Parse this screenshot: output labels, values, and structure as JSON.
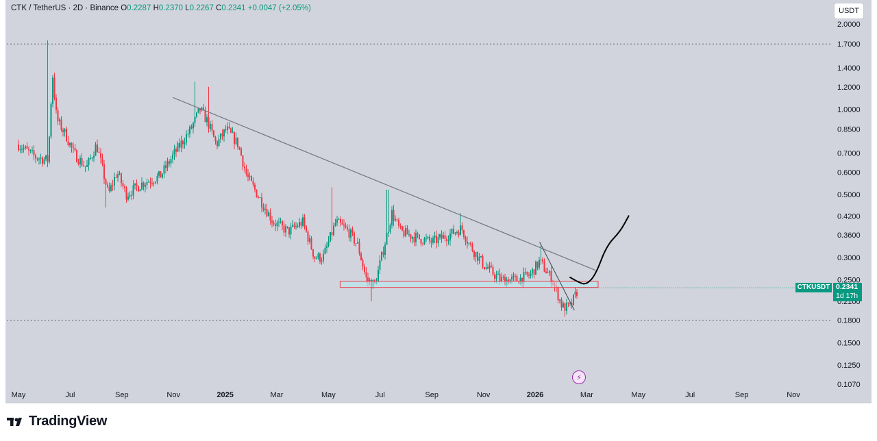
{
  "header": {
    "symbol_line": "CTK / TetherUS · 2D · Binance",
    "o_label": "O",
    "o_value": "0.2287",
    "h_label": "H",
    "h_value": "0.2370",
    "l_label": "L",
    "l_value": "0.2267",
    "c_label": "C",
    "c_value": "0.2341",
    "change": "+0.0047 (+2.05%)"
  },
  "currency_button": "USDT",
  "price_badge": {
    "symbol": "CTKUSDT",
    "price": "0.2341",
    "countdown": "1d 17h"
  },
  "footer": {
    "brand": "TradingView"
  },
  "icons": {
    "lightning": "lightning-icon",
    "logo": "tradingview-logo-icon"
  },
  "colors": {
    "up": "#089981",
    "down": "#f23645",
    "background": "#d1d4dc",
    "trendline": "#787b86",
    "zone_fill": "#b2ebf2",
    "zone_border": "#f23645"
  },
  "chart_data": {
    "type": "candlestick",
    "y_scale": "log",
    "y_ticks": [
      "2.0000",
      "1.7000",
      "1.4000",
      "1.2000",
      "1.0000",
      "0.8500",
      "0.7000",
      "0.6000",
      "0.5000",
      "0.4200",
      "0.3600",
      "0.3000",
      "0.2500",
      "0.2100",
      "0.1800",
      "0.1500",
      "0.1250",
      "0.1070"
    ],
    "x_ticks": [
      "May",
      "Jul",
      "Sep",
      "Nov",
      "2025",
      "Mar",
      "May",
      "Jul",
      "Sep",
      "Nov",
      "2026",
      "Mar",
      "May",
      "Jul",
      "Sep",
      "Nov"
    ],
    "ylim": [
      0.107,
      2.0
    ],
    "ref_lines": [
      1.7,
      0.18
    ],
    "path": [
      [
        "2024-05-01",
        0.75
      ],
      [
        "2024-05-20",
        0.68
      ],
      [
        "2024-06-05",
        0.66
      ],
      [
        "2024-06-10",
        1.35
      ],
      [
        "2024-06-15",
        0.92
      ],
      [
        "2024-06-25",
        0.82
      ],
      [
        "2024-07-05",
        0.7
      ],
      [
        "2024-07-20",
        0.62
      ],
      [
        "2024-08-01",
        0.75
      ],
      [
        "2024-08-15",
        0.5
      ],
      [
        "2024-08-25",
        0.6
      ],
      [
        "2024-09-05",
        0.5
      ],
      [
        "2024-09-25",
        0.55
      ],
      [
        "2024-10-15",
        0.58
      ],
      [
        "2024-11-01",
        0.7
      ],
      [
        "2024-11-20",
        0.85
      ],
      [
        "2024-12-01",
        1.0
      ],
      [
        "2024-12-10",
        0.9
      ],
      [
        "2024-12-20",
        0.75
      ],
      [
        "2025-01-01",
        0.85
      ],
      [
        "2025-01-15",
        0.75
      ],
      [
        "2025-01-25",
        0.58
      ],
      [
        "2025-02-10",
        0.48
      ],
      [
        "2025-02-25",
        0.4
      ],
      [
        "2025-03-15",
        0.37
      ],
      [
        "2025-04-01",
        0.4
      ],
      [
        "2025-04-15",
        0.3
      ],
      [
        "2025-04-25",
        0.3
      ],
      [
        "2025-05-10",
        0.4
      ],
      [
        "2025-05-25",
        0.37
      ],
      [
        "2025-06-05",
        0.33
      ],
      [
        "2025-06-15",
        0.25
      ],
      [
        "2025-06-25",
        0.24
      ],
      [
        "2025-07-05",
        0.32
      ],
      [
        "2025-07-15",
        0.43
      ],
      [
        "2025-07-25",
        0.37
      ],
      [
        "2025-08-15",
        0.35
      ],
      [
        "2025-09-01",
        0.34
      ],
      [
        "2025-09-20",
        0.36
      ],
      [
        "2025-10-05",
        0.38
      ],
      [
        "2025-10-15",
        0.33
      ],
      [
        "2025-11-01",
        0.28
      ],
      [
        "2025-11-20",
        0.25
      ],
      [
        "2025-12-10",
        0.25
      ],
      [
        "2025-12-25",
        0.26
      ],
      [
        "2026-01-05",
        0.29
      ],
      [
        "2026-01-20",
        0.25
      ],
      [
        "2026-02-01",
        0.2
      ],
      [
        "2026-02-10",
        0.2
      ],
      [
        "2026-02-20",
        0.234
      ]
    ],
    "highs": [
      [
        "2024-06-05",
        1.75
      ],
      [
        "2024-11-25",
        1.25
      ],
      [
        "2024-12-12",
        1.2
      ],
      [
        "2025-05-05",
        0.53
      ],
      [
        "2025-07-10",
        0.52
      ],
      [
        "2025-10-03",
        0.43
      ],
      [
        "2026-01-06",
        0.33
      ]
    ],
    "lows": [
      [
        "2024-08-12",
        0.45
      ],
      [
        "2025-06-20",
        0.21
      ],
      [
        "2026-02-03",
        0.185
      ]
    ],
    "annotations": {
      "trendline": [
        [
          "2024-10-30",
          1.1
        ],
        [
          "2026-03-12",
          0.27
        ]
      ],
      "short_trendline": [
        [
          "2026-01-05",
          0.34
        ],
        [
          "2026-02-15",
          0.195
        ]
      ],
      "zone": {
        "x": [
          "2025-05-15",
          "2026-03-15"
        ],
        "y": [
          0.235,
          0.247
        ]
      },
      "projection": [
        [
          "2026-02-10",
          0.255
        ],
        [
          "2026-02-20",
          0.245
        ],
        [
          "2026-03-01",
          0.24
        ],
        [
          "2026-03-12",
          0.26
        ],
        [
          "2026-03-25",
          0.33
        ],
        [
          "2026-04-10",
          0.37
        ],
        [
          "2026-04-20",
          0.42
        ]
      ]
    }
  }
}
